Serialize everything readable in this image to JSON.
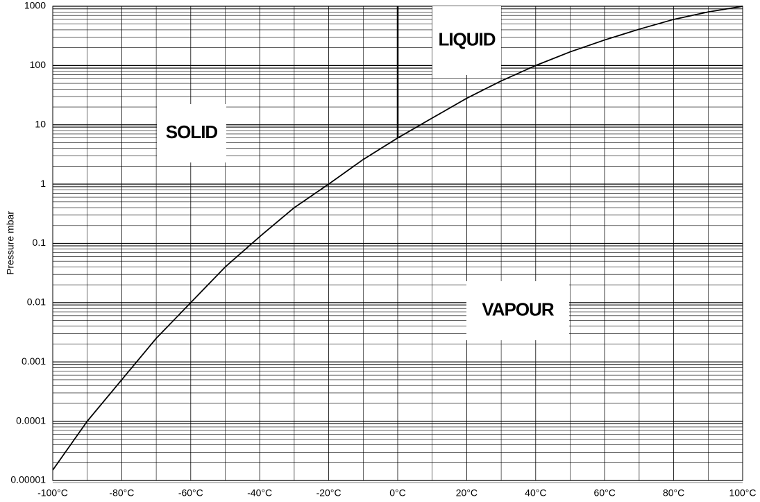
{
  "chart_data": {
    "type": "line",
    "ylabel": "Pressure mbar",
    "log_y": true,
    "grid": true,
    "xlim": [
      -100,
      100
    ],
    "xticks": [
      {
        "value": -100,
        "label": "-100°C"
      },
      {
        "value": -80,
        "label": "-80°C"
      },
      {
        "value": -60,
        "label": "-60°C"
      },
      {
        "value": -40,
        "label": "-40°C"
      },
      {
        "value": -20,
        "label": "-20°C"
      },
      {
        "value": 0,
        "label": "0°C"
      },
      {
        "value": 20,
        "label": "20°C"
      },
      {
        "value": 40,
        "label": "40°C"
      },
      {
        "value": 60,
        "label": "60°C"
      },
      {
        "value": 80,
        "label": "80°C"
      },
      {
        "value": 100,
        "label": "100°C"
      }
    ],
    "ylim": [
      1e-05,
      1000
    ],
    "yticks": [
      1e-05,
      0.0001,
      0.001,
      0.01,
      0.1,
      1,
      10,
      100,
      1000
    ],
    "series": [
      {
        "color": "#000000",
        "x": [
          -100,
          -90,
          -80,
          -70,
          -60,
          -50,
          -40,
          -30,
          -20,
          -10,
          0,
          10,
          20,
          30,
          40,
          50,
          60,
          70,
          80,
          90,
          100
        ],
        "values": [
          1.5e-05,
          0.0001,
          0.0005,
          0.0025,
          0.01,
          0.04,
          0.13,
          0.4,
          1.0,
          2.6,
          6,
          13,
          28,
          55,
          100,
          170,
          270,
          410,
          600,
          800,
          1000
        ]
      },
      {
        "color": "#000000",
        "x": [
          0,
          0
        ],
        "values": [
          6,
          1000
        ]
      }
    ],
    "annotations": [
      "SOLID",
      "LIQUID",
      "VAPOUR"
    ]
  }
}
